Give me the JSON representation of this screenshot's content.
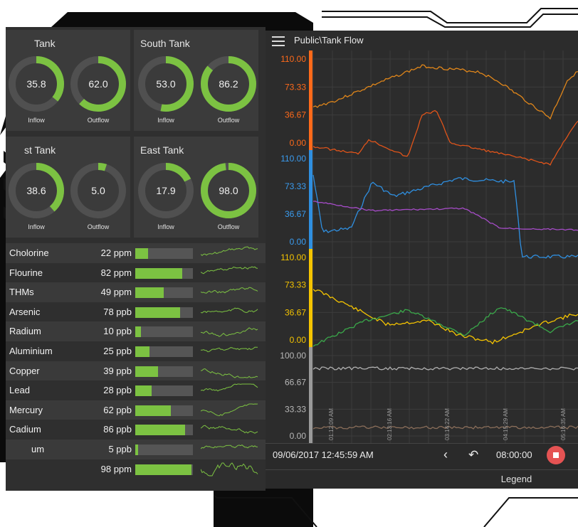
{
  "tanks": [
    {
      "title": "Tank",
      "gauges": [
        {
          "value": "35.8",
          "label": "Inflow",
          "fill": 0.358
        },
        {
          "value": "62.0",
          "label": "Outflow",
          "fill": 0.62
        }
      ]
    },
    {
      "title": "South Tank",
      "gauges": [
        {
          "value": "53.0",
          "label": "Inflow",
          "fill": 0.53
        },
        {
          "value": "86.2",
          "label": "Outflow",
          "fill": 0.862
        }
      ]
    },
    {
      "title": "st Tank",
      "gauges": [
        {
          "value": "38.6",
          "label": "Inflow",
          "fill": 0.386
        },
        {
          "value": "5.0",
          "label": "Outflow",
          "fill": 0.05
        }
      ]
    },
    {
      "title": "East Tank",
      "gauges": [
        {
          "value": "17.9",
          "label": "Inflow",
          "fill": 0.179
        },
        {
          "value": "98.0",
          "label": "Outflow",
          "fill": 0.98
        }
      ]
    }
  ],
  "parameters": [
    {
      "name": "Cholorine",
      "value": "22 ppm",
      "fill": 0.22
    },
    {
      "name": "Flourine",
      "value": "82 ppm",
      "fill": 0.82
    },
    {
      "name": "THMs",
      "value": "49 ppm",
      "fill": 0.49
    },
    {
      "name": "Arsenic",
      "value": "78 ppb",
      "fill": 0.78
    },
    {
      "name": "Radium",
      "value": "10 ppb",
      "fill": 0.1
    },
    {
      "name": "Aluminium",
      "value": "25 ppb",
      "fill": 0.25
    },
    {
      "name": "Copper",
      "value": "39 ppb",
      "fill": 0.39
    },
    {
      "name": "Lead",
      "value": "28 ppb",
      "fill": 0.28
    },
    {
      "name": "Mercury",
      "value": "62 ppb",
      "fill": 0.62
    },
    {
      "name": "Cadium",
      "value": "86 ppb",
      "fill": 0.86
    },
    {
      "name": "um",
      "value": "5 ppb",
      "fill": 0.05
    },
    {
      "name": "",
      "value": "98 ppm",
      "fill": 0.98
    }
  ],
  "trend": {
    "title": "Public\\Tank Flow",
    "timestamp": "09/06/2017 12:45:59 AM",
    "duration": "08:00:00",
    "legend_label": "Legend",
    "time_labels": [
      "01:12:09 AM",
      "02:13:16 AM",
      "03:14:22 AM",
      "04:15:29 AM",
      "05:16:35 AM"
    ],
    "panes": [
      {
        "color": "#ff6a1a",
        "ticks": [
          "110.00",
          "73.33",
          "36.67",
          "0.00"
        ],
        "tick_color": "#ff6a1a"
      },
      {
        "color": "#2f8fe0",
        "ticks": [
          "110.00",
          "73.33",
          "36.67",
          "0.00"
        ],
        "tick_color": "#3a9cf0"
      },
      {
        "color": "#f5c400",
        "ticks": [
          "110.00",
          "73.33",
          "36.67",
          "0.00"
        ],
        "tick_color": "#f5c400"
      },
      {
        "color": "#9a9a9a",
        "ticks": [
          "100.00",
          "66.67",
          "33.33",
          "0.00"
        ],
        "tick_color": "#b8b8b8"
      }
    ]
  },
  "colors": {
    "accent": "#7cc242",
    "orange": "#e0861a",
    "red_orange": "#e0541a",
    "blue": "#2f8fe0",
    "purple": "#a64cc8",
    "yellow": "#f5c400",
    "green": "#3aa84a",
    "gray": "#b0b0b0",
    "stop": "#e55353"
  }
}
